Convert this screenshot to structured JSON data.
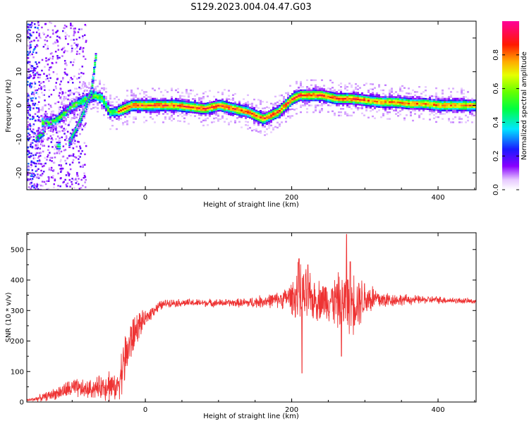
{
  "title": "S129.2023.004.04.47.G03",
  "colors": {
    "snr_line": "#ee3333",
    "axis": "#000000",
    "background": "#ffffff"
  },
  "chart_data": [
    {
      "type": "heatmap",
      "xlabel": "Height of straight line (km)",
      "ylabel": "Frequency (Hz)",
      "xlim": [
        -162,
        452
      ],
      "ylim": [
        -25,
        25
      ],
      "x_ticks": [
        0,
        200,
        400
      ],
      "x_tick_labels": [
        "0",
        "200",
        "400"
      ],
      "y_ticks": [
        -20,
        -10,
        0,
        10,
        20
      ],
      "y_tick_labels": [
        "-20",
        "-10",
        "0",
        "10",
        "20"
      ],
      "grid": false,
      "colorbar": {
        "label": "Normalized spectral amplitude",
        "range": [
          0,
          1
        ],
        "ticks": [
          0,
          0.2,
          0.4,
          0.6,
          0.8
        ],
        "tick_labels": [
          "0.0",
          "0.2",
          "0.4",
          "0.6",
          "0.8"
        ],
        "colormap": "rainbow: white-violet-blue-cyan-green-yellow-red-magenta"
      },
      "ridge": {
        "x": [
          -140,
          -130,
          -120,
          -110,
          -100,
          -90,
          -80,
          -70,
          -60,
          -50,
          -40,
          -30,
          -20,
          -10,
          0,
          20,
          40,
          60,
          80,
          100,
          120,
          140,
          150,
          160,
          170,
          180,
          190,
          200,
          210,
          220,
          240,
          260,
          280,
          300,
          320,
          340,
          360,
          380,
          400,
          420,
          452
        ],
        "y": [
          -5,
          -5,
          -4,
          -2,
          0,
          1,
          2,
          3,
          2,
          -2,
          -2,
          -1,
          0,
          0,
          0,
          0,
          0,
          -0.5,
          -1,
          0,
          -1,
          -2,
          -3,
          -4,
          -3,
          -2,
          0,
          2,
          3,
          3,
          3,
          2,
          2,
          1.5,
          1,
          1,
          0.5,
          0.5,
          0,
          0,
          0
        ]
      },
      "branches": [
        {
          "x": [
            -105,
            -95,
            -85,
            -75,
            -68
          ],
          "y": [
            -11,
            -7,
            -2,
            4,
            16
          ]
        },
        {
          "x": [
            -150,
            -145,
            -140
          ],
          "y": [
            -10,
            -9,
            -8
          ]
        },
        {
          "x": [
            -122,
            -118
          ],
          "y": [
            -12,
            -12
          ]
        }
      ]
    },
    {
      "type": "line",
      "xlabel": "Height of straight line (km)",
      "ylabel": "SNR (10 * v/v)",
      "xlim": [
        -162,
        452
      ],
      "ylim": [
        0,
        555
      ],
      "x_ticks": [
        0,
        200,
        400
      ],
      "x_tick_labels": [
        "0",
        "200",
        "400"
      ],
      "y_ticks": [
        0,
        100,
        200,
        300,
        400,
        500
      ],
      "y_tick_labels": [
        "0",
        "100",
        "200",
        "300",
        "400",
        "500"
      ],
      "grid": false,
      "envelope": {
        "x": [
          -162,
          -140,
          -120,
          -100,
          -80,
          -60,
          -50,
          -40,
          -30,
          -20,
          -10,
          0,
          10,
          20,
          30,
          40,
          60,
          80,
          100,
          120,
          140,
          160,
          180,
          190,
          200,
          210,
          220,
          230,
          240,
          250,
          260,
          270,
          280,
          290,
          300,
          310,
          320,
          340,
          360,
          380,
          400,
          420,
          452
        ],
        "mean": [
          5,
          15,
          30,
          45,
          40,
          50,
          60,
          40,
          120,
          200,
          250,
          270,
          300,
          315,
          325,
          325,
          325,
          325,
          325,
          325,
          325,
          330,
          335,
          340,
          345,
          350,
          340,
          335,
          335,
          335,
          330,
          330,
          330,
          335,
          340,
          340,
          335,
          335,
          335,
          335,
          335,
          333,
          330
        ],
        "amp": [
          5,
          15,
          25,
          40,
          35,
          45,
          70,
          40,
          110,
          90,
          60,
          30,
          25,
          20,
          15,
          15,
          15,
          15,
          15,
          15,
          20,
          25,
          30,
          40,
          60,
          130,
          110,
          80,
          80,
          80,
          100,
          120,
          130,
          110,
          80,
          60,
          40,
          25,
          20,
          15,
          15,
          12,
          10
        ]
      },
      "peaks": [
        {
          "x": 210,
          "y": 470
        },
        {
          "x": 214,
          "y": 95
        },
        {
          "x": 275,
          "y": 550
        },
        {
          "x": 280,
          "y": 460
        },
        {
          "x": 268,
          "y": 150
        },
        {
          "x": 222,
          "y": 450
        }
      ]
    }
  ]
}
